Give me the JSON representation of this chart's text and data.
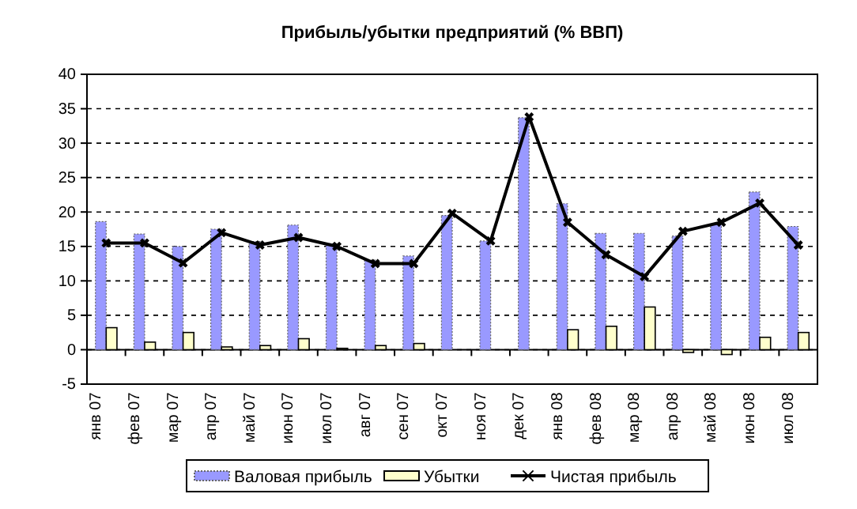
{
  "chart_data": {
    "type": "bar",
    "title": "Прибыль/убытки предприятий (% ВВП)",
    "categories": [
      "янв 07",
      "фев 07",
      "мар 07",
      "апр 07",
      "май 07",
      "июн 07",
      "июл 07",
      "авг 07",
      "сен 07",
      "окт 07",
      "ноя 07",
      "дек 07",
      "янв 08",
      "фев 08",
      "мар 08",
      "апр 08",
      "май 08",
      "июн 08",
      "июл 08"
    ],
    "series": [
      {
        "name": "Валовая прибыль",
        "color": "#9999ff",
        "values": [
          18.6,
          16.8,
          15.0,
          17.5,
          15.7,
          18.1,
          15.4,
          13.0,
          13.6,
          19.5,
          15.8,
          33.7,
          21.2,
          16.9,
          16.9,
          16.5,
          18.2,
          22.9,
          17.9
        ]
      },
      {
        "name": "Убытки",
        "color": "#ffffcc",
        "values": [
          3.2,
          1.1,
          2.5,
          0.4,
          0.6,
          1.6,
          0.2,
          0.6,
          0.9,
          0,
          0,
          0,
          2.9,
          3.4,
          6.2,
          -0.4,
          -0.7,
          1.8,
          2.5
        ]
      },
      {
        "name": "Чистая прибыль",
        "type": "line",
        "color": "#000000",
        "marker": "cross",
        "values": [
          15.5,
          15.5,
          12.6,
          17.0,
          15.2,
          16.3,
          15.0,
          12.5,
          12.5,
          19.8,
          15.8,
          33.8,
          18.5,
          13.8,
          10.6,
          17.2,
          18.5,
          21.3,
          15.2
        ]
      }
    ],
    "ylim": [
      -5,
      40
    ],
    "yticks": [
      -5,
      0,
      5,
      10,
      15,
      20,
      25,
      30,
      35,
      40
    ],
    "grid": "y",
    "legend": "bottom"
  }
}
